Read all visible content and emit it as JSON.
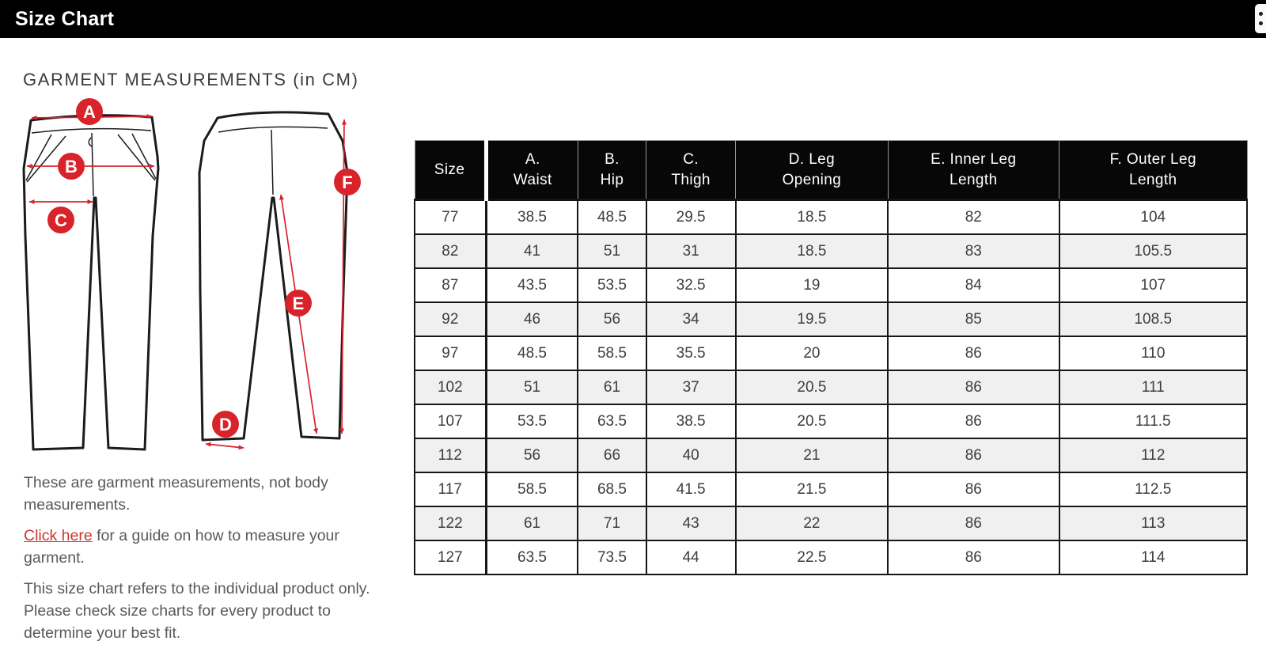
{
  "topbar": {
    "title": "Size Chart"
  },
  "page": {
    "heading": "GARMENT MEASUREMENTS (in CM)"
  },
  "colors": {
    "bar_background": "#000000",
    "marker_red": "#d8232b",
    "link_red": "#d0342c",
    "row_stripe": "#f0f0f0",
    "header_cell": "#070707"
  },
  "diagram": {
    "markers": [
      {
        "label": "A"
      },
      {
        "label": "B"
      },
      {
        "label": "C"
      },
      {
        "label": "D"
      },
      {
        "label": "E"
      },
      {
        "label": "F"
      }
    ]
  },
  "table": {
    "columns": [
      "Size",
      "A.\nWaist",
      "B.\nHip",
      "C.\nThigh",
      "D. Leg\nOpening",
      "E. Inner Leg\nLength",
      "F. Outer Leg\nLength"
    ],
    "rows": [
      [
        "77",
        "38.5",
        "48.5",
        "29.5",
        "18.5",
        "82",
        "104"
      ],
      [
        "82",
        "41",
        "51",
        "31",
        "18.5",
        "83",
        "105.5"
      ],
      [
        "87",
        "43.5",
        "53.5",
        "32.5",
        "19",
        "84",
        "107"
      ],
      [
        "92",
        "46",
        "56",
        "34",
        "19.5",
        "85",
        "108.5"
      ],
      [
        "97",
        "48.5",
        "58.5",
        "35.5",
        "20",
        "86",
        "110"
      ],
      [
        "102",
        "51",
        "61",
        "37",
        "20.5",
        "86",
        "111"
      ],
      [
        "107",
        "53.5",
        "63.5",
        "38.5",
        "20.5",
        "86",
        "111.5"
      ],
      [
        "112",
        "56",
        "66",
        "40",
        "21",
        "86",
        "112"
      ],
      [
        "117",
        "58.5",
        "68.5",
        "41.5",
        "21.5",
        "86",
        "112.5"
      ],
      [
        "122",
        "61",
        "71",
        "43",
        "22",
        "86",
        "113"
      ],
      [
        "127",
        "63.5",
        "73.5",
        "44",
        "22.5",
        "86",
        "114"
      ]
    ]
  },
  "notes": {
    "note1": "These are garment measurements, not body measurements.",
    "link_label": "Click here",
    "note2_rest": " for a guide on how to measure your garment.",
    "note3": "This size chart refers to the individual product only. Please check size charts for every product to determine your best fit."
  }
}
